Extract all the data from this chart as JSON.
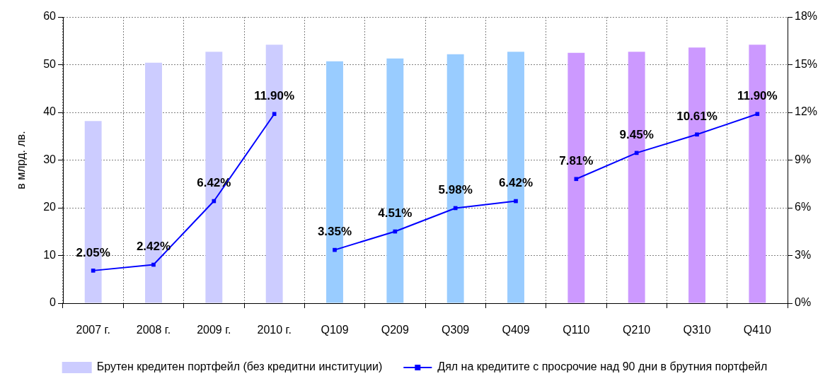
{
  "chart_data": {
    "type": "bar",
    "ylabel": "в млрд. лв.",
    "categories": [
      "2007 г.",
      "2008 г.",
      "2009 г.",
      "2010 г.",
      "Q109",
      "Q209",
      "Q309",
      "Q409",
      "Q110",
      "Q210",
      "Q310",
      "Q410"
    ],
    "series": [
      {
        "name": "Брутен кредитен портфейл (без кредитни институции)",
        "colors": [
          "#ccccff",
          "#ccccff",
          "#ccccff",
          "#ccccff",
          "#99ccff",
          "#99ccff",
          "#99ccff",
          "#99ccff",
          "#cc99ff",
          "#cc99ff",
          "#cc99ff",
          "#cc99ff"
        ],
        "values": [
          38.2,
          50.4,
          52.7,
          54.2,
          50.7,
          51.3,
          52.2,
          52.7,
          52.5,
          52.7,
          53.6,
          54.2
        ]
      },
      {
        "name": "Дял на кредитите с просрочие над 90 дни в брутния портфейл",
        "type": "line",
        "axis": "y2",
        "color": "#0000ff",
        "values": [
          2.05,
          2.42,
          6.42,
          11.9,
          null,
          null,
          null,
          null,
          null,
          null,
          null,
          null
        ],
        "value_labels": [
          "2.05%",
          "2.42%",
          "6.42%",
          "11.90%",
          null,
          null,
          null,
          null,
          null,
          null,
          null,
          null
        ]
      },
      {
        "type": "line",
        "axis": "y2",
        "color": "#0000ff",
        "values": [
          null,
          null,
          null,
          null,
          3.35,
          4.51,
          5.98,
          6.42,
          null,
          null,
          null,
          null
        ],
        "value_labels": [
          null,
          null,
          null,
          null,
          "3.35%",
          "4.51%",
          "5.98%",
          "6.42%",
          null,
          null,
          null,
          null
        ]
      },
      {
        "type": "line",
        "axis": "y2",
        "color": "#0000ff",
        "values": [
          null,
          null,
          null,
          null,
          null,
          null,
          null,
          null,
          7.81,
          9.45,
          10.61,
          11.9
        ],
        "value_labels": [
          null,
          null,
          null,
          null,
          null,
          null,
          null,
          null,
          "7.81%",
          "9.45%",
          "10.61%",
          "11.90%"
        ]
      }
    ],
    "ylim": [
      0,
      60
    ],
    "yticks": [
      0,
      10,
      20,
      30,
      40,
      50,
      60
    ],
    "y2lim": [
      0,
      18
    ],
    "y2ticks": [
      {
        "value": 0,
        "label": "0%"
      },
      {
        "value": 3,
        "label": "3%"
      },
      {
        "value": 6,
        "label": "6%"
      },
      {
        "value": 9,
        "label": "9%"
      },
      {
        "value": 12,
        "label": "12%"
      },
      {
        "value": 15,
        "label": "15%"
      },
      {
        "value": 18,
        "label": "18%"
      }
    ],
    "grid": true,
    "legend": "bottom",
    "marker": "square"
  }
}
